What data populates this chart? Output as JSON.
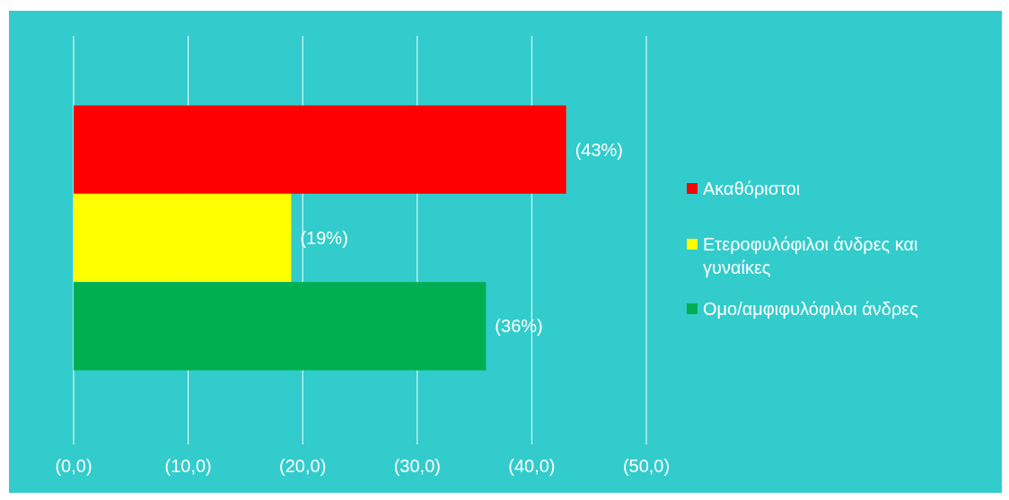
{
  "chart_data": {
    "type": "bar",
    "orientation": "horizontal",
    "categories": [
      null
    ],
    "series": [
      {
        "name": "Ακαθόριστοι",
        "color": "#ff0000",
        "values": [
          43
        ],
        "value_labels": [
          "(43%)"
        ]
      },
      {
        "name": "Ετεροφυλόφιλοι άνδρες και γυναίκες",
        "color": "#ffff00",
        "values": [
          19
        ],
        "value_labels": [
          "(19%)"
        ]
      },
      {
        "name": "Ομο/αμφιφυλόφιλοι άνδρες",
        "color": "#00b050",
        "values": [
          36
        ],
        "value_labels": [
          "(36%)"
        ]
      }
    ],
    "xlim": [
      0,
      50
    ],
    "xticks": [
      {
        "value": 0,
        "label": "(0,0)"
      },
      {
        "value": 10,
        "label": "(10,0)"
      },
      {
        "value": 20,
        "label": "(20,0)"
      },
      {
        "value": 30,
        "label": "(30,0)"
      },
      {
        "value": 40,
        "label": "(40,0)"
      },
      {
        "value": 50,
        "label": "(50,0)"
      }
    ],
    "grid": "x",
    "legend": "right"
  }
}
